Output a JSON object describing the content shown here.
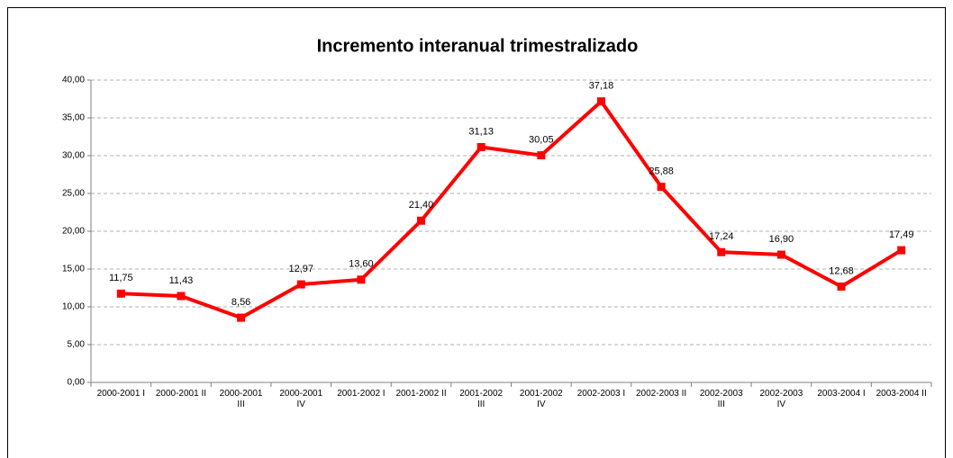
{
  "chart_data": {
    "type": "line",
    "title": "Incremento interanual trimestralizado",
    "categories": [
      "2000-2001 I",
      "2000-2001 II",
      "2000-2001 III",
      "2000-2001 IV",
      "2001-2002 I",
      "2001-2002 II",
      "2001-2002 III",
      "2001-2002 IV",
      "2002-2003 I",
      "2002-2003 II",
      "2002-2003 III",
      "2002-2003 IV",
      "2003-2004 I",
      "2003-2004 II"
    ],
    "values": [
      11.75,
      11.43,
      8.56,
      12.97,
      13.6,
      21.4,
      31.13,
      30.05,
      37.18,
      25.88,
      17.24,
      16.9,
      12.68,
      17.49
    ],
    "value_labels": [
      "11,75",
      "11,43",
      "8,56",
      "12,97",
      "13,60",
      "21,40",
      "31,13",
      "30,05",
      "37,18",
      "25,88",
      "17,24",
      "16,90",
      "12,68",
      "17,49"
    ],
    "color": "#ff0000",
    "ylim": [
      0,
      40
    ],
    "yticks": [
      {
        "value": 0,
        "label": "0,00"
      },
      {
        "value": 5,
        "label": "5,00"
      },
      {
        "value": 10,
        "label": "10,00"
      },
      {
        "value": 15,
        "label": "15,00"
      },
      {
        "value": 20,
        "label": "20,00"
      },
      {
        "value": 25,
        "label": "25,00"
      },
      {
        "value": 30,
        "label": "30,00"
      },
      {
        "value": 35,
        "label": "35,00"
      },
      {
        "value": 40,
        "label": "40,00"
      }
    ],
    "grid": true
  }
}
